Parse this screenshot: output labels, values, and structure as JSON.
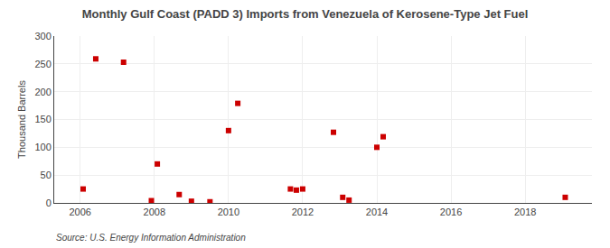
{
  "chart_data": {
    "type": "scatter",
    "title": "Monthly Gulf Coast (PADD 3) Imports from Venezuela of Kerosene-Type Jet Fuel",
    "ylabel": "Thousand Barrels",
    "annotations": [
      "Source: U.S. Energy Information Administration"
    ],
    "x": [
      2006.08,
      2006.42,
      2007.17,
      2007.92,
      2008.08,
      2008.67,
      2009.0,
      2009.5,
      2010.0,
      2010.25,
      2011.67,
      2011.83,
      2012.0,
      2012.83,
      2013.08,
      2013.25,
      2014.0,
      2014.17,
      2019.08
    ],
    "values": [
      25,
      259,
      253,
      4,
      70,
      15,
      3,
      2,
      130,
      179,
      25,
      23,
      25,
      127,
      10,
      5,
      100,
      119,
      10
    ],
    "color": "#cc0000",
    "marker": "square",
    "xlim": [
      2005.3,
      2019.8
    ],
    "ylim": [
      0,
      300
    ],
    "xticks": [
      2006,
      2008,
      2010,
      2012,
      2014,
      2016,
      2018
    ],
    "yticks": [
      0,
      50,
      100,
      150,
      200,
      250,
      300
    ],
    "grid": true
  }
}
